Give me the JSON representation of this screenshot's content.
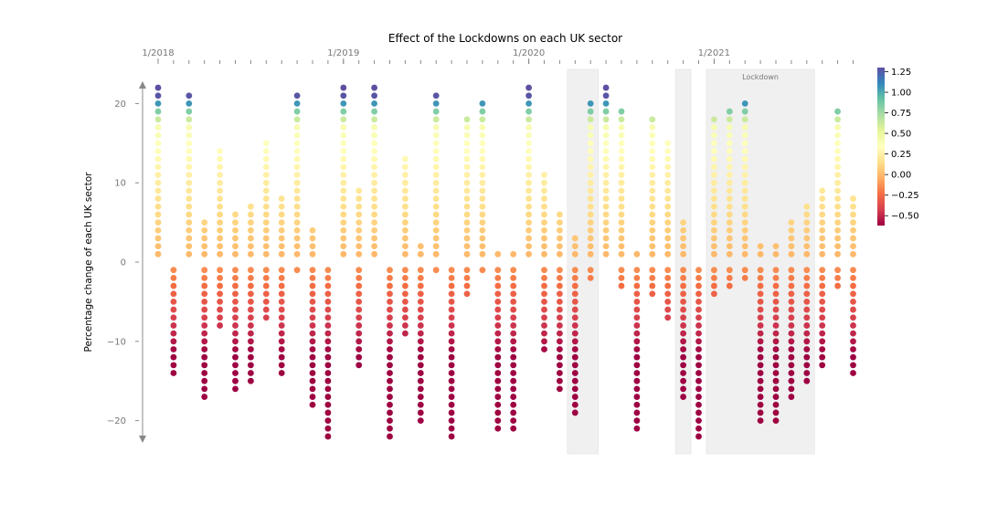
{
  "chart_data": {
    "type": "scatter",
    "title": "Effect of the Lockdowns on each UK sector",
    "ylabel": "Percentage change of each UK sector",
    "xlabel": "",
    "x_top_labels": [
      {
        "label": "1/2018",
        "month": 0
      },
      {
        "label": "1/2019",
        "month": 12
      },
      {
        "label": "1/2020",
        "month": 24
      },
      {
        "label": "1/2021",
        "month": 36
      }
    ],
    "yticks": [
      20,
      10,
      0,
      -10,
      -20
    ],
    "ytick_labels": [
      "20",
      "10",
      "0",
      "−10",
      "−20"
    ],
    "ylim": [
      -24,
      24
    ],
    "grid": false,
    "shaded_regions": [
      {
        "start": 26.5,
        "end": 28.5,
        "label": ""
      },
      {
        "start": 33.5,
        "end": 34.5,
        "label": ""
      },
      {
        "start": 35.5,
        "end": 42.5,
        "label": "Lockdown"
      }
    ],
    "colorbar": {
      "min": -0.62,
      "max": 1.3,
      "ticks": [
        1.25,
        1.0,
        0.75,
        0.5,
        0.25,
        0.0,
        -0.25,
        -0.5
      ],
      "tick_labels": [
        "1.25",
        "1.00",
        "0.75",
        "0.50",
        "0.25",
        "0.00",
        "−0.25",
        "−0.50"
      ],
      "colormap": "Spectral"
    },
    "columns_top": [
      22,
      0,
      21,
      5,
      14,
      6,
      7,
      15,
      8,
      21,
      4,
      0,
      22,
      9,
      22,
      0,
      13,
      2,
      21,
      0,
      18,
      20,
      1,
      1,
      22,
      11,
      6,
      3,
      20,
      22,
      19,
      1,
      18,
      15,
      5,
      0,
      18,
      19,
      20,
      2,
      2,
      5,
      7,
      9,
      19,
      8
    ],
    "columns_bottom": [
      0,
      -14,
      0,
      -17,
      -8,
      -16,
      -15,
      -7,
      -14,
      -1,
      -18,
      -22,
      0,
      -13,
      0,
      -22,
      -9,
      -20,
      -1,
      -22,
      -4,
      -1,
      -21,
      -21,
      0,
      -11,
      -16,
      -19,
      -2,
      0,
      -3,
      -21,
      -4,
      -7,
      -17,
      -22,
      -4,
      -3,
      -2,
      -20,
      -20,
      -17,
      -15,
      -13,
      -3,
      -14
    ],
    "color_scale": {
      "top_threshold": 17,
      "top_gain": 0.22,
      "bottom_gain": 0.045
    }
  }
}
